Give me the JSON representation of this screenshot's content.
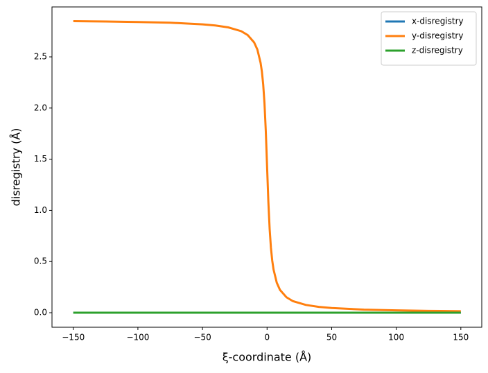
{
  "chart_data": {
    "type": "line",
    "xlabel": "ξ-coordinate (Å)",
    "ylabel": "disregistry (Å)",
    "x": [
      -150,
      -125,
      -100,
      -75,
      -50,
      -40,
      -30,
      -20,
      -15,
      -10,
      -7.5,
      -5,
      -4,
      -3,
      -2,
      -1,
      0,
      1,
      2,
      3,
      4,
      5,
      7.5,
      10,
      15,
      20,
      30,
      40,
      50,
      75,
      100,
      125,
      150
    ],
    "series": [
      {
        "name": "x-disregistry",
        "color": "#1f77b4",
        "values": [
          0,
          0,
          0,
          0,
          0,
          0,
          0,
          0,
          0,
          0,
          0,
          0,
          0,
          0,
          0,
          0,
          0,
          0,
          0,
          0,
          0,
          0,
          0,
          0,
          0,
          0,
          0,
          0,
          0,
          0,
          0,
          0,
          0
        ]
      },
      {
        "name": "y-disregistry",
        "color": "#ff7f0e",
        "values": [
          2.849,
          2.846,
          2.841,
          2.834,
          2.818,
          2.807,
          2.788,
          2.751,
          2.713,
          2.641,
          2.571,
          2.441,
          2.355,
          2.231,
          2.047,
          1.779,
          1.432,
          1.085,
          0.817,
          0.633,
          0.509,
          0.423,
          0.293,
          0.223,
          0.151,
          0.113,
          0.076,
          0.057,
          0.046,
          0.03,
          0.023,
          0.018,
          0.015
        ]
      },
      {
        "name": "z-disregistry",
        "color": "#2ca02c",
        "values": [
          0,
          0,
          0,
          0,
          0,
          0,
          0,
          0,
          0,
          0,
          0,
          0,
          0,
          0,
          0,
          0,
          0,
          0,
          0,
          0,
          0,
          0,
          0,
          0,
          0,
          0,
          0,
          0,
          0,
          0,
          0,
          0,
          0
        ]
      }
    ],
    "xlim": [
      -166.5,
      166.2
    ],
    "ylim": [
      -0.142,
      2.988
    ],
    "xticks": [
      {
        "value": -150,
        "label": "−150"
      },
      {
        "value": -100,
        "label": "−100"
      },
      {
        "value": -50,
        "label": "−50"
      },
      0,
      50,
      100,
      150
    ],
    "yticks": [
      {
        "value": 0,
        "label": "0.0"
      },
      {
        "value": 0.5,
        "label": "0.5"
      },
      {
        "value": 1,
        "label": "1.0"
      },
      {
        "value": 1.5,
        "label": "1.5"
      },
      {
        "value": 2,
        "label": "2.0"
      },
      {
        "value": 2.5,
        "label": "2.5"
      }
    ],
    "grid": false,
    "legend": "upper right"
  }
}
